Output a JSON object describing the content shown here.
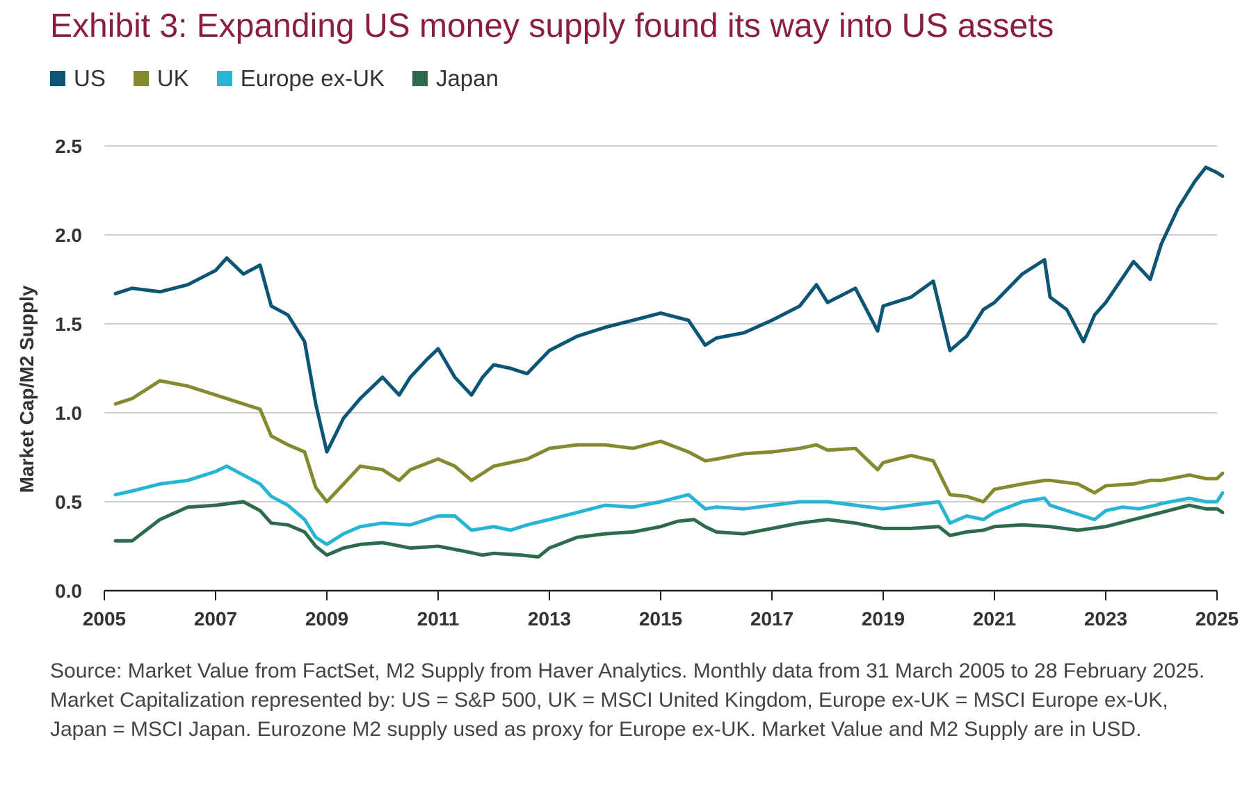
{
  "title": "Exhibit 3: Expanding US money supply found its way into US assets",
  "source": "Source: Market Value from FactSet, M2 Supply from Haver Analytics. Monthly data from 31 March 2005 to 28 February 2025. Market Capitalization represented by: US = S&P 500, UK = MSCI United Kingdom, Europe ex-UK = MSCI Europe ex-UK, Japan = MSCI Japan. Eurozone M2 supply used as proxy for Europe ex-UK. Market Value and M2 Supply are in USD.",
  "chart_data": {
    "type": "line",
    "ylabel": "Market Cap/M2 Supply",
    "xlabel": "",
    "ylim": [
      0,
      2.5
    ],
    "xlim": [
      2005,
      2025
    ],
    "yticks": [
      "0.0",
      "0.5",
      "1.0",
      "1.5",
      "2.0",
      "2.5"
    ],
    "xticks": [
      "2005",
      "2007",
      "2009",
      "2011",
      "2013",
      "2015",
      "2017",
      "2019",
      "2021",
      "2023",
      "2025"
    ],
    "grid": true,
    "legend_position": "top-left",
    "series": [
      {
        "name": "US",
        "color": "#0b5674",
        "x": [
          2005.2,
          2005.5,
          2006.0,
          2006.5,
          2007.0,
          2007.2,
          2007.5,
          2007.8,
          2008.0,
          2008.3,
          2008.6,
          2008.8,
          2009.0,
          2009.3,
          2009.6,
          2010.0,
          2010.3,
          2010.5,
          2010.8,
          2011.0,
          2011.3,
          2011.6,
          2011.8,
          2012.0,
          2012.3,
          2012.6,
          2013.0,
          2013.5,
          2014.0,
          2014.5,
          2015.0,
          2015.5,
          2015.8,
          2016.0,
          2016.5,
          2017.0,
          2017.5,
          2017.8,
          2018.0,
          2018.5,
          2018.9,
          2019.0,
          2019.5,
          2019.9,
          2020.2,
          2020.5,
          2020.8,
          2021.0,
          2021.5,
          2021.9,
          2022.0,
          2022.3,
          2022.6,
          2022.8,
          2023.0,
          2023.5,
          2023.8,
          2024.0,
          2024.3,
          2024.6,
          2024.8,
          2025.0,
          2025.1
        ],
        "values": [
          1.67,
          1.7,
          1.68,
          1.72,
          1.8,
          1.87,
          1.78,
          1.83,
          1.6,
          1.55,
          1.4,
          1.05,
          0.78,
          0.97,
          1.08,
          1.2,
          1.1,
          1.2,
          1.3,
          1.36,
          1.2,
          1.1,
          1.2,
          1.27,
          1.25,
          1.22,
          1.35,
          1.43,
          1.48,
          1.52,
          1.56,
          1.52,
          1.38,
          1.42,
          1.45,
          1.52,
          1.6,
          1.72,
          1.62,
          1.7,
          1.46,
          1.6,
          1.65,
          1.74,
          1.35,
          1.43,
          1.58,
          1.62,
          1.78,
          1.86,
          1.65,
          1.58,
          1.4,
          1.55,
          1.62,
          1.85,
          1.75,
          1.95,
          2.15,
          2.3,
          2.38,
          2.35,
          2.33
        ]
      },
      {
        "name": "UK",
        "color": "#858a30",
        "x": [
          2005.2,
          2005.5,
          2006.0,
          2006.5,
          2007.0,
          2007.5,
          2007.8,
          2008.0,
          2008.3,
          2008.6,
          2008.8,
          2009.0,
          2009.3,
          2009.6,
          2010.0,
          2010.3,
          2010.5,
          2011.0,
          2011.3,
          2011.6,
          2012.0,
          2012.3,
          2012.6,
          2013.0,
          2013.5,
          2014.0,
          2014.5,
          2015.0,
          2015.5,
          2015.8,
          2016.0,
          2016.5,
          2017.0,
          2017.5,
          2017.8,
          2018.0,
          2018.5,
          2018.9,
          2019.0,
          2019.5,
          2019.9,
          2020.2,
          2020.5,
          2020.8,
          2021.0,
          2021.5,
          2021.9,
          2022.0,
          2022.5,
          2022.8,
          2023.0,
          2023.5,
          2023.8,
          2024.0,
          2024.5,
          2024.8,
          2025.0,
          2025.1
        ],
        "values": [
          1.05,
          1.08,
          1.18,
          1.15,
          1.1,
          1.05,
          1.02,
          0.87,
          0.82,
          0.78,
          0.58,
          0.5,
          0.6,
          0.7,
          0.68,
          0.62,
          0.68,
          0.74,
          0.7,
          0.62,
          0.7,
          0.72,
          0.74,
          0.8,
          0.82,
          0.82,
          0.8,
          0.84,
          0.78,
          0.73,
          0.74,
          0.77,
          0.78,
          0.8,
          0.82,
          0.79,
          0.8,
          0.68,
          0.72,
          0.76,
          0.73,
          0.54,
          0.53,
          0.5,
          0.57,
          0.6,
          0.62,
          0.62,
          0.6,
          0.55,
          0.59,
          0.6,
          0.62,
          0.62,
          0.65,
          0.63,
          0.63,
          0.66
        ]
      },
      {
        "name": "Europe ex-UK",
        "color": "#27b5d3",
        "x": [
          2005.2,
          2005.5,
          2006.0,
          2006.5,
          2007.0,
          2007.2,
          2007.5,
          2007.8,
          2008.0,
          2008.3,
          2008.6,
          2008.8,
          2009.0,
          2009.3,
          2009.6,
          2010.0,
          2010.5,
          2011.0,
          2011.3,
          2011.6,
          2012.0,
          2012.3,
          2012.6,
          2013.0,
          2013.5,
          2014.0,
          2014.5,
          2015.0,
          2015.5,
          2015.8,
          2016.0,
          2016.5,
          2017.0,
          2017.5,
          2018.0,
          2018.5,
          2019.0,
          2019.5,
          2020.0,
          2020.2,
          2020.5,
          2020.8,
          2021.0,
          2021.5,
          2021.9,
          2022.0,
          2022.3,
          2022.6,
          2022.8,
          2023.0,
          2023.3,
          2023.6,
          2023.9,
          2024.0,
          2024.5,
          2024.8,
          2025.0,
          2025.1
        ],
        "values": [
          0.54,
          0.56,
          0.6,
          0.62,
          0.67,
          0.7,
          0.65,
          0.6,
          0.53,
          0.48,
          0.4,
          0.3,
          0.26,
          0.32,
          0.36,
          0.38,
          0.37,
          0.42,
          0.42,
          0.34,
          0.36,
          0.34,
          0.37,
          0.4,
          0.44,
          0.48,
          0.47,
          0.5,
          0.54,
          0.46,
          0.47,
          0.46,
          0.48,
          0.5,
          0.5,
          0.48,
          0.46,
          0.48,
          0.5,
          0.38,
          0.42,
          0.4,
          0.44,
          0.5,
          0.52,
          0.48,
          0.45,
          0.42,
          0.4,
          0.45,
          0.47,
          0.46,
          0.48,
          0.49,
          0.52,
          0.5,
          0.5,
          0.55
        ]
      },
      {
        "name": "Japan",
        "color": "#2e6b4e",
        "x": [
          2005.2,
          2005.5,
          2006.0,
          2006.5,
          2007.0,
          2007.5,
          2007.8,
          2008.0,
          2008.3,
          2008.6,
          2008.8,
          2009.0,
          2009.3,
          2009.6,
          2010.0,
          2010.5,
          2011.0,
          2011.5,
          2011.8,
          2012.0,
          2012.5,
          2012.8,
          2013.0,
          2013.5,
          2014.0,
          2014.5,
          2015.0,
          2015.3,
          2015.6,
          2015.8,
          2016.0,
          2016.5,
          2017.0,
          2017.5,
          2018.0,
          2018.5,
          2019.0,
          2019.5,
          2020.0,
          2020.2,
          2020.5,
          2020.8,
          2021.0,
          2021.5,
          2022.0,
          2022.5,
          2023.0,
          2023.5,
          2024.0,
          2024.5,
          2024.8,
          2025.0,
          2025.1
        ],
        "values": [
          0.28,
          0.28,
          0.4,
          0.47,
          0.48,
          0.5,
          0.45,
          0.38,
          0.37,
          0.33,
          0.25,
          0.2,
          0.24,
          0.26,
          0.27,
          0.24,
          0.25,
          0.22,
          0.2,
          0.21,
          0.2,
          0.19,
          0.24,
          0.3,
          0.32,
          0.33,
          0.36,
          0.39,
          0.4,
          0.36,
          0.33,
          0.32,
          0.35,
          0.38,
          0.4,
          0.38,
          0.35,
          0.35,
          0.36,
          0.31,
          0.33,
          0.34,
          0.36,
          0.37,
          0.36,
          0.34,
          0.36,
          0.4,
          0.44,
          0.48,
          0.46,
          0.46,
          0.44
        ]
      }
    ]
  }
}
